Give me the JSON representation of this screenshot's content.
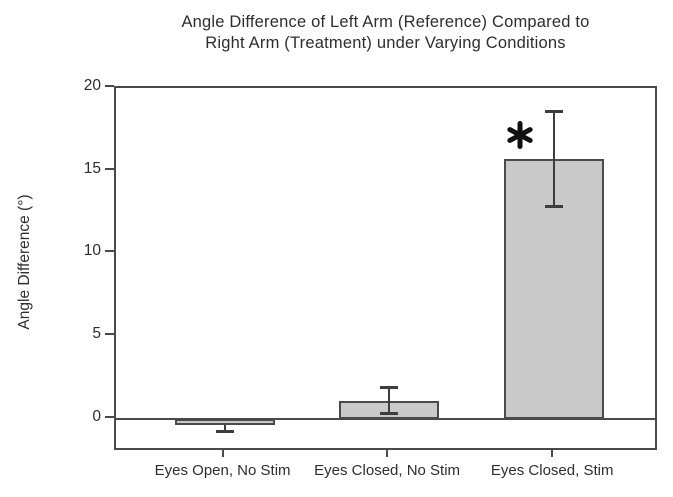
{
  "title_lines": [
    "Angle Difference of Left Arm (Reference) Compared to",
    "Right Arm (Treatment) under Varying Conditions"
  ],
  "chart_data": {
    "type": "bar",
    "title": "Angle Difference of Left Arm (Reference) Compared to Right Arm (Treatment) under Varying Conditions",
    "categories": [
      "Eyes Open, No Stim",
      "Eyes Closed, No Stim",
      "Eyes Closed, Stim"
    ],
    "values": [
      -0.35,
      1.1,
      15.7
    ],
    "errors": [
      0.45,
      0.8,
      2.9
    ],
    "error_sides": [
      "minus",
      "both",
      "both"
    ],
    "xlabel": "",
    "ylabel": "Angle Difference (°)",
    "ylim": [
      -2,
      20
    ],
    "yticks": [
      0,
      5,
      10,
      15,
      20
    ],
    "grid": false,
    "legend": false,
    "frame": true,
    "zero_line": true,
    "significance": {
      "marker": "*",
      "category_index": 2,
      "category": "Eyes Closed, Stim"
    },
    "colors": {
      "background": "#ffffff",
      "bar_fill": "#c9c9c9",
      "bar_border": "#4a4a4a",
      "axis": "#4a4a4a",
      "error_bar": "#3d3d3d",
      "text": "#2e2e2e",
      "marker": "#111111"
    }
  }
}
